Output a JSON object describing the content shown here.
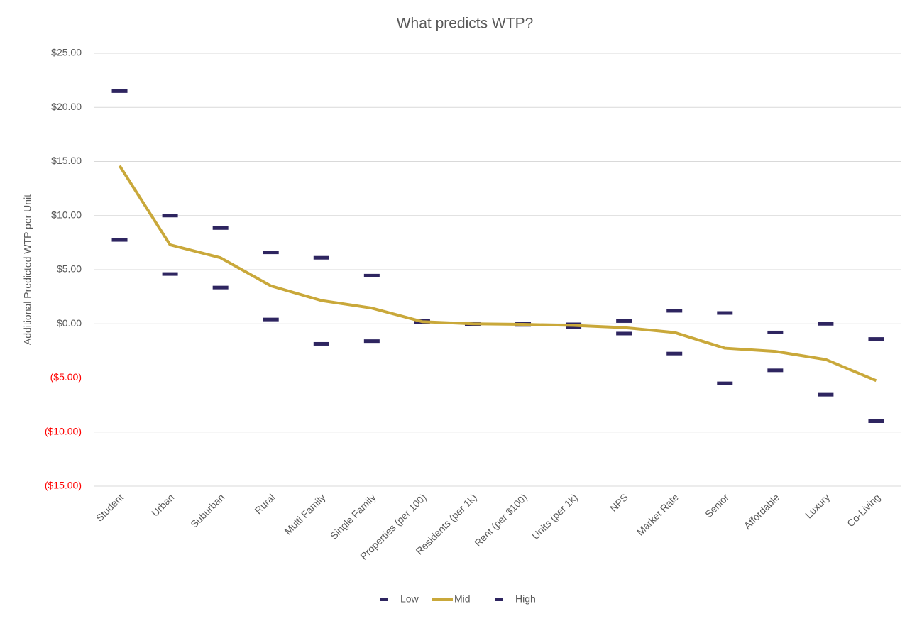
{
  "chart_data": {
    "type": "line",
    "title": "What predicts WTP?",
    "y_label": "Additional Predicted WTP per Unit",
    "categories": [
      "Student",
      "Urban",
      "Suburban",
      "Rural",
      "Multi Family",
      "Single Family",
      "Properties (per 100)",
      "Residents (per 1k)",
      "Rent (per $100)",
      "Units (per 1k)",
      "NPS",
      "Market Rate",
      "Senior",
      "Affordable",
      "Luxury",
      "Co-Living"
    ],
    "series": [
      {
        "name": "Low",
        "color": "#2e2560",
        "style": "dash",
        "values": [
          7.75,
          4.6,
          3.35,
          0.4,
          -1.85,
          -1.6,
          0.15,
          -0.05,
          -0.1,
          -0.3,
          -0.9,
          -2.75,
          -5.5,
          -4.3,
          -6.55,
          -9.0
        ]
      },
      {
        "name": "Mid",
        "color": "#c9a83a",
        "style": "line",
        "values": [
          14.6,
          7.3,
          6.1,
          3.5,
          2.15,
          1.45,
          0.2,
          0,
          -0.05,
          -0.15,
          -0.35,
          -0.8,
          -2.25,
          -2.55,
          -3.3,
          -5.25
        ]
      },
      {
        "name": "High",
        "color": "#2e2560",
        "style": "dash",
        "values": [
          21.5,
          10.0,
          8.85,
          6.6,
          6.1,
          4.45,
          0.25,
          0.05,
          0,
          -0.05,
          0.25,
          1.2,
          1.0,
          -0.8,
          0,
          -1.4
        ]
      }
    ],
    "ylim": [
      -15,
      25
    ],
    "yticks": [
      {
        "value": -15,
        "label": "($15.00)"
      },
      {
        "value": -10,
        "label": "($10.00)"
      },
      {
        "value": -5,
        "label": "($5.00)"
      },
      {
        "value": 0,
        "label": "$0.00"
      },
      {
        "value": 5,
        "label": "$5.00"
      },
      {
        "value": 10,
        "label": "$10.00"
      },
      {
        "value": 15,
        "label": "$15.00"
      },
      {
        "value": 20,
        "label": "$20.00"
      },
      {
        "value": 25,
        "label": "$25.00"
      }
    ],
    "negative_tick_color": "#ff0000",
    "grid": true,
    "legend": "bottom"
  }
}
